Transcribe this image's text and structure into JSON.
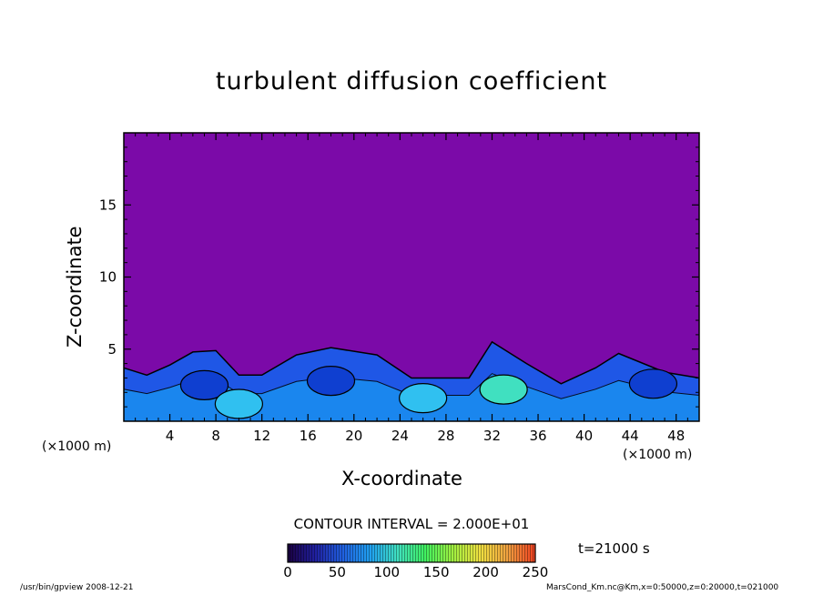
{
  "chart_data": {
    "type": "heatmap",
    "title": "turbulent diffusion coefficient",
    "xlabel": "X-coordinate",
    "ylabel": "Z-coordinate",
    "x_unit_label": "(×1000 m)",
    "x_unit_label_right": "(×1000 m)",
    "xlim": [
      0,
      50
    ],
    "ylim": [
      0,
      20
    ],
    "x_ticks": [
      4,
      8,
      12,
      16,
      20,
      24,
      28,
      32,
      36,
      40,
      44,
      48
    ],
    "y_ticks": [
      5,
      10,
      15
    ],
    "background_value": 0,
    "turbulent_layer_top": [
      3.7,
      3.2,
      3.9,
      4.8,
      4.9,
      3.2,
      3.2,
      4.6,
      5.1,
      4.6,
      3.0,
      3.0,
      3.0,
      5.5,
      4.0,
      2.6,
      3.7,
      4.7,
      3.4,
      3.0
    ],
    "turbulent_layer_top_x": [
      0,
      2,
      4,
      6,
      8,
      10,
      12,
      15,
      18,
      22,
      25,
      28,
      30,
      32,
      35,
      38,
      41,
      43,
      47,
      50
    ],
    "colorbar": {
      "min": 0,
      "max": 250,
      "tick_labels": [
        "0",
        "50",
        "100",
        "150",
        "200",
        "250"
      ],
      "colors": [
        "#1a0040",
        "#2020a0",
        "#2060e0",
        "#20a0f0",
        "#40e0c0",
        "#40f060",
        "#a0f040",
        "#f0e040",
        "#f0a040",
        "#f04020"
      ]
    },
    "contour_interval": "CONTOUR INTERVAL = 2.000E+01",
    "time_label": "t=21000 s",
    "footer_left": "/usr/bin/gpview   2008-12-21",
    "footer_right": "MarsCond_Km.nc@Km,x=0:50000,z=0:20000,t=021000"
  }
}
